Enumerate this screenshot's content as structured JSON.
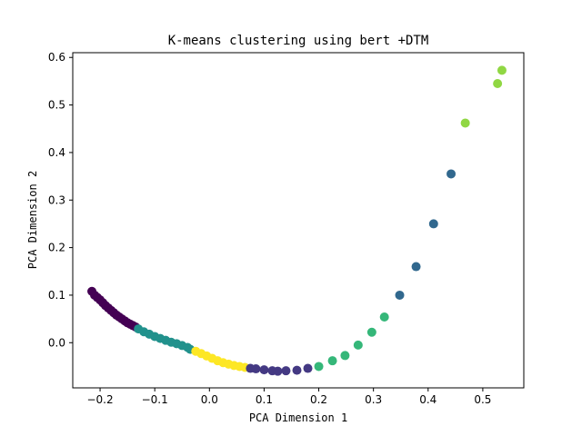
{
  "chart_data": {
    "type": "scatter",
    "title": "K-means clustering using bert +DTM",
    "xlabel": "PCA Dimension 1",
    "ylabel": "PCA Dimension 2",
    "xlim": [
      -0.25,
      0.575
    ],
    "ylim": [
      -0.095,
      0.61
    ],
    "xticks": [
      -0.2,
      -0.1,
      0.0,
      0.1,
      0.2,
      0.3,
      0.4,
      0.5
    ],
    "xtick_labels": [
      "−0.2",
      "−0.1",
      "0.0",
      "0.1",
      "0.2",
      "0.3",
      "0.4",
      "0.5"
    ],
    "yticks": [
      0.0,
      0.1,
      0.2,
      0.3,
      0.4,
      0.5,
      0.6
    ],
    "ytick_labels": [
      "0.0",
      "0.1",
      "0.2",
      "0.3",
      "0.4",
      "0.5",
      "0.6"
    ],
    "grid": false,
    "legend": "none",
    "colormap": "viridis",
    "clusters": [
      {
        "color": "#440154",
        "points": [
          [
            -0.215,
            0.108
          ],
          [
            -0.21,
            0.1
          ],
          [
            -0.205,
            0.095
          ],
          [
            -0.2,
            0.09
          ],
          [
            -0.195,
            0.084
          ],
          [
            -0.19,
            0.078
          ],
          [
            -0.185,
            0.073
          ],
          [
            -0.18,
            0.068
          ],
          [
            -0.175,
            0.063
          ],
          [
            -0.17,
            0.058
          ],
          [
            -0.165,
            0.054
          ],
          [
            -0.16,
            0.05
          ],
          [
            -0.155,
            0.046
          ],
          [
            -0.15,
            0.042
          ],
          [
            -0.145,
            0.039
          ],
          [
            -0.14,
            0.036
          ],
          [
            -0.135,
            0.033
          ]
        ]
      },
      {
        "color": "#21918c",
        "points": [
          [
            -0.13,
            0.029
          ],
          [
            -0.12,
            0.023
          ],
          [
            -0.11,
            0.018
          ],
          [
            -0.1,
            0.013
          ],
          [
            -0.09,
            0.009
          ],
          [
            -0.08,
            0.005
          ],
          [
            -0.07,
            0.001
          ],
          [
            -0.06,
            -0.002
          ],
          [
            -0.05,
            -0.006
          ],
          [
            -0.04,
            -0.01
          ],
          [
            -0.035,
            -0.014
          ]
        ]
      },
      {
        "color": "#fde725",
        "points": [
          [
            -0.025,
            -0.018
          ],
          [
            -0.015,
            -0.023
          ],
          [
            -0.005,
            -0.028
          ],
          [
            0.005,
            -0.033
          ],
          [
            0.015,
            -0.038
          ],
          [
            0.025,
            -0.042
          ],
          [
            0.035,
            -0.045
          ],
          [
            0.045,
            -0.048
          ],
          [
            0.055,
            -0.05
          ],
          [
            0.065,
            -0.052
          ]
        ]
      },
      {
        "color": "#443983",
        "points": [
          [
            0.075,
            -0.054
          ],
          [
            0.085,
            -0.055
          ],
          [
            0.1,
            -0.057
          ],
          [
            0.115,
            -0.059
          ],
          [
            0.125,
            -0.06
          ],
          [
            0.14,
            -0.059
          ],
          [
            0.16,
            -0.058
          ],
          [
            0.18,
            -0.054
          ]
        ]
      },
      {
        "color": "#35b779",
        "points": [
          [
            0.2,
            -0.05
          ],
          [
            0.225,
            -0.038
          ],
          [
            0.248,
            -0.027
          ],
          [
            0.272,
            -0.005
          ],
          [
            0.297,
            0.022
          ],
          [
            0.32,
            0.054
          ]
        ]
      },
      {
        "color": "#31688e",
        "points": [
          [
            0.348,
            0.1
          ],
          [
            0.378,
            0.16
          ],
          [
            0.41,
            0.25
          ],
          [
            0.442,
            0.355
          ]
        ]
      },
      {
        "color": "#90d743",
        "points": [
          [
            0.468,
            0.462
          ],
          [
            0.527,
            0.545
          ],
          [
            0.535,
            0.573
          ]
        ]
      }
    ]
  }
}
